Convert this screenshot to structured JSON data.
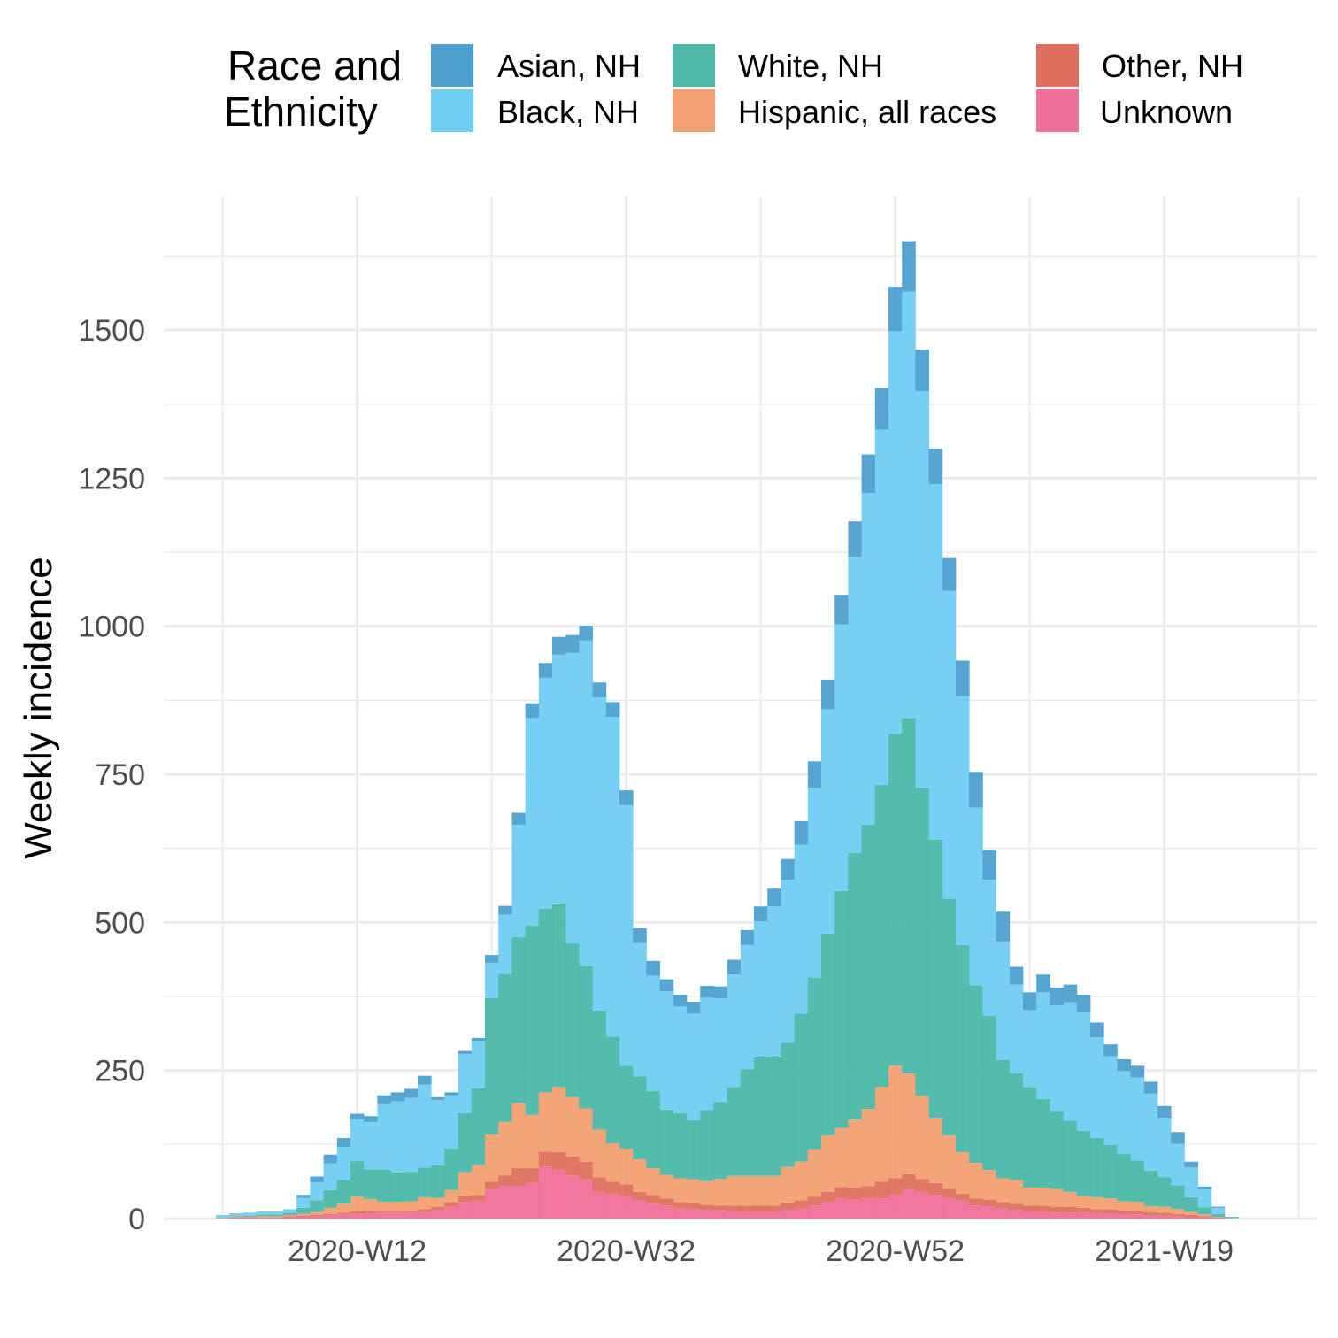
{
  "chart_data": {
    "type": "bar",
    "stacked": true,
    "ylabel": "Weekly incidence",
    "xlabel": "",
    "ylim": [
      0,
      1725
    ],
    "y_ticks": [
      0,
      250,
      500,
      750,
      1000,
      1250,
      1500
    ],
    "x_tick_labels": [
      "2020-W12",
      "2020-W32",
      "2020-W52",
      "2021-W19"
    ],
    "grid": true,
    "legend": {
      "title_lines": [
        "Race and",
        "Ethnicity"
      ],
      "position": "top"
    },
    "stack_order": [
      "Unknown",
      "Other, NH",
      "Hispanic, all races",
      "White, NH",
      "Black, NH",
      "Asian, NH"
    ],
    "categories": [
      "2020-W02",
      "2020-W03",
      "2020-W04",
      "2020-W05",
      "2020-W06",
      "2020-W07",
      "2020-W08",
      "2020-W09",
      "2020-W10",
      "2020-W11",
      "2020-W12",
      "2020-W13",
      "2020-W14",
      "2020-W15",
      "2020-W16",
      "2020-W17",
      "2020-W18",
      "2020-W19",
      "2020-W20",
      "2020-W21",
      "2020-W22",
      "2020-W23",
      "2020-W24",
      "2020-W25",
      "2020-W26",
      "2020-W27",
      "2020-W28",
      "2020-W29",
      "2020-W30",
      "2020-W31",
      "2020-W32",
      "2020-W33",
      "2020-W34",
      "2020-W35",
      "2020-W36",
      "2020-W37",
      "2020-W38",
      "2020-W39",
      "2020-W40",
      "2020-W41",
      "2020-W42",
      "2020-W43",
      "2020-W44",
      "2020-W45",
      "2020-W46",
      "2020-W47",
      "2020-W48",
      "2020-W49",
      "2020-W50",
      "2020-W51",
      "2020-W52",
      "2020-W53",
      "2021-W01",
      "2021-W02",
      "2021-W03",
      "2021-W04",
      "2021-W05",
      "2021-W06",
      "2021-W07",
      "2021-W08",
      "2021-W09",
      "2021-W10",
      "2021-W11",
      "2021-W12",
      "2021-W13",
      "2021-W14",
      "2021-W15",
      "2021-W16",
      "2021-W17",
      "2021-W18",
      "2021-W19",
      "2021-W20",
      "2021-W21",
      "2021-W22",
      "2021-W23",
      "2021-W24"
    ],
    "series": [
      {
        "name": "Unknown",
        "color": "#f07099",
        "values": [
          1,
          1,
          1,
          1,
          1,
          2,
          3,
          4,
          6,
          7,
          8,
          9,
          10,
          10,
          11,
          12,
          15,
          20,
          28,
          30,
          50,
          55,
          55,
          60,
          88,
          82,
          73,
          66,
          45,
          42,
          38,
          30,
          25,
          22,
          18,
          16,
          15,
          14,
          12,
          12,
          12,
          12,
          15,
          18,
          22,
          28,
          35,
          32,
          35,
          34,
          40,
          50,
          45,
          40,
          35,
          30,
          22,
          20,
          18,
          15,
          12,
          12,
          10,
          10,
          10,
          8,
          8,
          7,
          7,
          5,
          5,
          4,
          3,
          2,
          1,
          0
        ]
      },
      {
        "name": "Other, NH",
        "color": "#df705d",
        "values": [
          0,
          1,
          1,
          1,
          1,
          2,
          2,
          2,
          2,
          3,
          4,
          4,
          3,
          3,
          3,
          4,
          5,
          8,
          10,
          10,
          12,
          18,
          30,
          25,
          25,
          30,
          32,
          30,
          25,
          20,
          20,
          15,
          15,
          12,
          10,
          10,
          8,
          8,
          10,
          10,
          10,
          10,
          12,
          13,
          15,
          17,
          18,
          20,
          20,
          28,
          28,
          25,
          22,
          20,
          15,
          12,
          12,
          12,
          10,
          10,
          10,
          10,
          10,
          10,
          8,
          8,
          8,
          7,
          6,
          6,
          5,
          4,
          3,
          2,
          1,
          0
        ]
      },
      {
        "name": "Hispanic, all races",
        "color": "#f2a070",
        "values": [
          0,
          1,
          1,
          2,
          2,
          2,
          3,
          5,
          10,
          15,
          25,
          20,
          15,
          15,
          15,
          20,
          15,
          20,
          40,
          50,
          80,
          90,
          110,
          90,
          100,
          110,
          100,
          90,
          80,
          65,
          60,
          55,
          45,
          40,
          40,
          40,
          40,
          45,
          50,
          50,
          50,
          50,
          60,
          65,
          80,
          95,
          100,
          115,
          130,
          160,
          190,
          170,
          140,
          110,
          90,
          70,
          60,
          50,
          40,
          40,
          30,
          30,
          30,
          25,
          20,
          20,
          18,
          15,
          15,
          10,
          10,
          8,
          5,
          3,
          1,
          0
        ]
      },
      {
        "name": "White, NH",
        "color": "#4bb8a8",
        "values": [
          0,
          1,
          2,
          3,
          3,
          4,
          10,
          20,
          30,
          40,
          60,
          50,
          55,
          50,
          50,
          50,
          55,
          70,
          100,
          130,
          230,
          250,
          280,
          320,
          310,
          310,
          260,
          240,
          200,
          180,
          140,
          140,
          130,
          110,
          110,
          100,
          120,
          130,
          150,
          180,
          200,
          200,
          210,
          250,
          290,
          340,
          400,
          450,
          480,
          510,
          560,
          600,
          520,
          470,
          400,
          350,
          300,
          260,
          200,
          180,
          170,
          150,
          130,
          120,
          110,
          100,
          90,
          80,
          70,
          60,
          50,
          40,
          25,
          12,
          5,
          0
        ]
      },
      {
        "name": "Black, NH",
        "color": "#70cef2",
        "values": [
          5,
          5,
          5,
          5,
          5,
          6,
          17,
          30,
          45,
          56,
          70,
          80,
          110,
          120,
          125,
          140,
          110,
          90,
          100,
          80,
          60,
          100,
          190,
          350,
          390,
          420,
          490,
          550,
          530,
          540,
          440,
          225,
          195,
          200,
          180,
          180,
          190,
          175,
          190,
          210,
          230,
          255,
          275,
          285,
          320,
          380,
          450,
          500,
          560,
          600,
          680,
          720,
          670,
          600,
          520,
          420,
          300,
          230,
          200,
          150,
          130,
          180,
          180,
          200,
          200,
          170,
          150,
          140,
          140,
          130,
          100,
          70,
          50,
          30,
          10,
          2
        ]
      },
      {
        "name": "Asian, NH",
        "color": "#4da0d0",
        "values": [
          0,
          0,
          0,
          0,
          0,
          0,
          5,
          10,
          15,
          15,
          10,
          10,
          15,
          15,
          15,
          15,
          5,
          5,
          5,
          5,
          13,
          15,
          20,
          25,
          25,
          30,
          30,
          25,
          25,
          25,
          25,
          25,
          25,
          20,
          20,
          20,
          20,
          20,
          25,
          25,
          25,
          30,
          35,
          40,
          45,
          50,
          50,
          60,
          65,
          70,
          75,
          85,
          70,
          60,
          55,
          60,
          60,
          50,
          50,
          30,
          30,
          30,
          30,
          30,
          30,
          25,
          20,
          20,
          20,
          20,
          20,
          20,
          10,
          5,
          2,
          1
        ]
      }
    ]
  }
}
